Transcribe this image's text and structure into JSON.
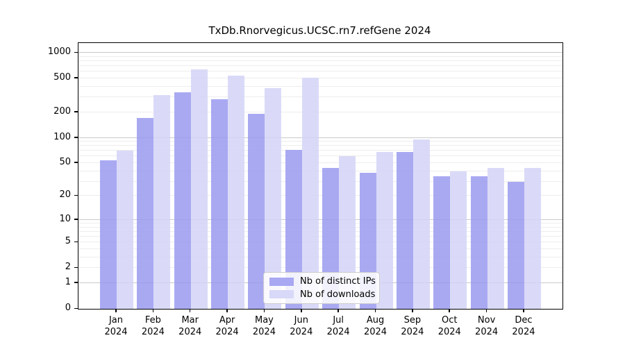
{
  "title": "TxDb.Rnorvegicus.UCSC.rn7.refGene 2024",
  "legend": {
    "items": [
      {
        "label": "Nb of distinct IPs",
        "color": "#a8a8f3"
      },
      {
        "label": "Nb of downloads",
        "color": "#d8d8f8"
      }
    ]
  },
  "colors": {
    "bar_ips": "#9a9af0",
    "bar_downloads": "#d4d4f7",
    "grid_major": "#c9c9c9",
    "grid_minor": "#ededed",
    "axis": "#000000"
  },
  "chart_data": {
    "type": "bar",
    "title": "TxDb.Rnorvegicus.UCSC.rn7.refGene 2024",
    "xlabel": "",
    "ylabel": "",
    "categories": [
      "Jan",
      "Feb",
      "Mar",
      "Apr",
      "May",
      "Jun",
      "Jul",
      "Aug",
      "Sep",
      "Oct",
      "Nov",
      "Dec"
    ],
    "year_label": "2024",
    "series": [
      {
        "name": "Nb of distinct IPs",
        "values": [
          54,
          172,
          346,
          283,
          193,
          72,
          44,
          38,
          68,
          35,
          35,
          30
        ]
      },
      {
        "name": "Nb of downloads",
        "values": [
          70,
          318,
          640,
          540,
          385,
          510,
          60,
          68,
          95,
          40,
          44,
          44
        ]
      }
    ],
    "y_axis": {
      "scale": "log1p",
      "max": 1300,
      "tick_values": [
        1000,
        500,
        200,
        100,
        50,
        20,
        10,
        5,
        2,
        1,
        0
      ],
      "tick_labels": [
        "1000",
        "500",
        "200",
        "100",
        "50",
        "20",
        "10",
        "5",
        "2",
        "1",
        "0"
      ],
      "grid_major": [
        1,
        10,
        100,
        1000
      ],
      "grid_minor": [
        2,
        3,
        4,
        5,
        6,
        7,
        8,
        9,
        20,
        30,
        40,
        50,
        60,
        70,
        80,
        90,
        200,
        300,
        400,
        500,
        600,
        700,
        800,
        900
      ]
    },
    "grid": true,
    "legend_position": "lower-center-inside"
  }
}
